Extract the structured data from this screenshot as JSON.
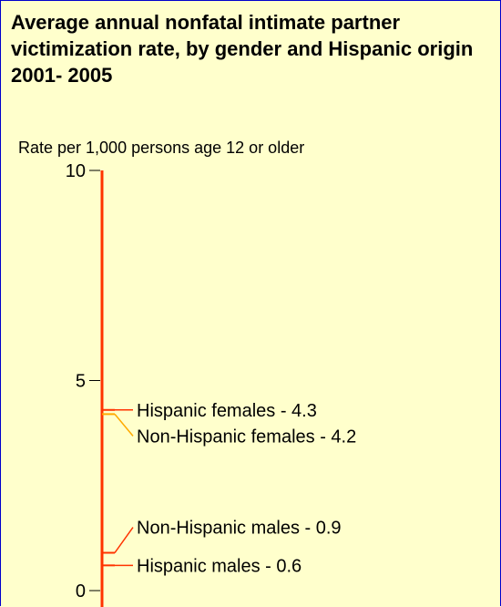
{
  "chart_data": {
    "type": "line",
    "title": "Average annual nonfatal intimate partner victimization rate, by gender and Hispanic origin 2001- 2005",
    "ylabel": "Rate per 1,000 persons age 12 or older",
    "ylim": [
      0,
      10
    ],
    "yticks": [
      "0",
      "5",
      "10"
    ],
    "grid": false,
    "points": [
      {
        "label": "Hispanic females - 4.3",
        "value": 4.3,
        "color": "#ff3300"
      },
      {
        "label": "Non-Hispanic females - 4.2",
        "value": 4.2,
        "color": "#ffaa00"
      },
      {
        "label": "Non-Hispanic males - 0.9",
        "value": 0.9,
        "color": "#ff3300"
      },
      {
        "label": "Hispanic males - 0.6",
        "value": 0.6,
        "color": "#ff3300"
      }
    ],
    "axis_color": "#ff3300"
  }
}
